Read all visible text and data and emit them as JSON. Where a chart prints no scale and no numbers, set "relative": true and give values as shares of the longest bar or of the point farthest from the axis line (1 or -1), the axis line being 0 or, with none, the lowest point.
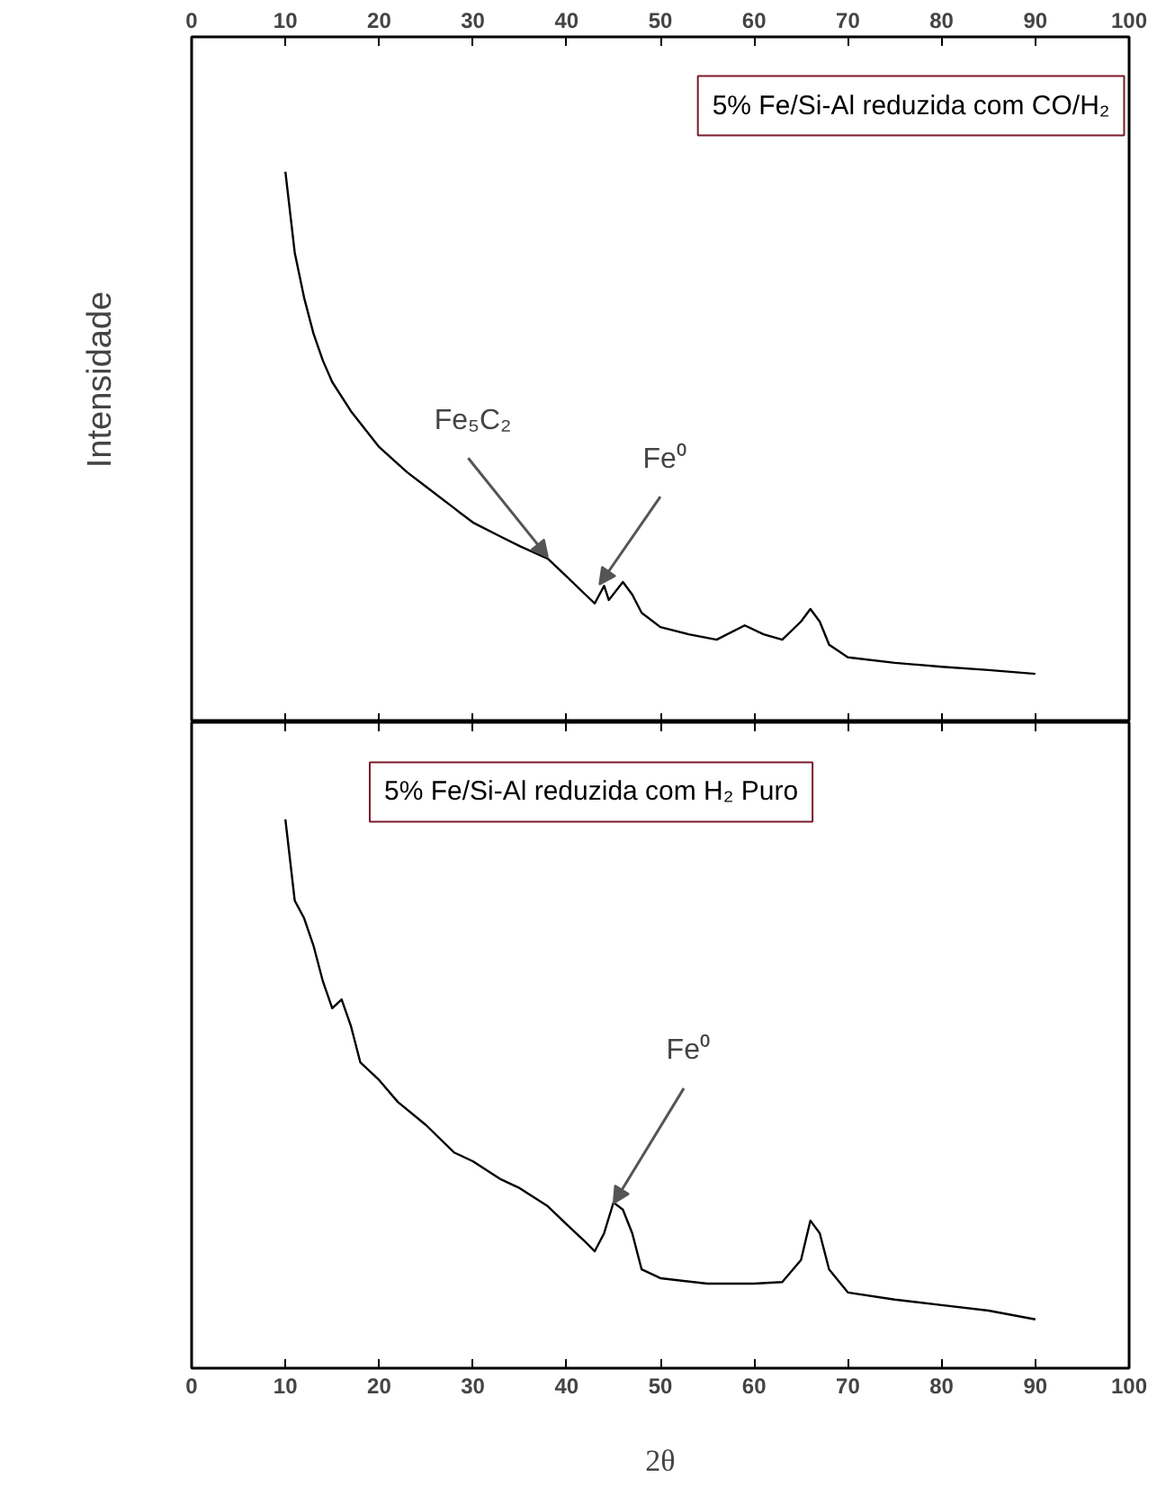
{
  "chart_data": [
    {
      "type": "line",
      "title": "5% Fe/Si-Al reduzida com CO/H₂",
      "ylabel": "Intensidade",
      "relative": true,
      "xlim": [
        0,
        100
      ],
      "xticks": [
        0,
        10,
        20,
        30,
        40,
        50,
        60,
        70,
        80,
        90,
        100
      ],
      "tick_labels": "x",
      "grid": false,
      "series": [
        {
          "color": "#000000",
          "x": [
            10,
            11,
            12,
            13,
            14,
            15,
            17,
            20,
            23,
            25,
            28,
            30,
            33,
            35,
            38,
            40,
            42,
            43,
            44,
            44.5,
            46,
            47,
            48,
            50,
            53,
            56,
            59,
            61,
            63,
            65,
            66,
            67,
            68,
            70,
            75,
            80,
            85,
            90
          ],
          "values": [
            1.0,
            0.853,
            0.771,
            0.706,
            0.657,
            0.618,
            0.565,
            0.5,
            0.454,
            0.428,
            0.389,
            0.363,
            0.337,
            0.32,
            0.297,
            0.265,
            0.232,
            0.216,
            0.248,
            0.222,
            0.255,
            0.232,
            0.199,
            0.173,
            0.16,
            0.15,
            0.176,
            0.16,
            0.15,
            0.183,
            0.206,
            0.183,
            0.141,
            0.118,
            0.108,
            0.101,
            0.095,
            0.088
          ]
        }
      ],
      "annotations": [
        {
          "text": "Fe₅C₂",
          "x": 38,
          "y": 0.3
        },
        {
          "text": "Fe⁰",
          "x": 43.5,
          "y": 0.25
        }
      ]
    },
    {
      "type": "line",
      "title": "5% Fe/Si-Al reduzida com H₂ Puro",
      "xlabel": "2θ",
      "relative": true,
      "xlim": [
        0,
        100
      ],
      "xticks": [
        0,
        10,
        20,
        30,
        40,
        50,
        60,
        70,
        80,
        90,
        100
      ],
      "tick_labels": "x",
      "grid": false,
      "series": [
        {
          "color": "#000000",
          "x": [
            10,
            11,
            12,
            13,
            14,
            15,
            16,
            17,
            18,
            20,
            22,
            25,
            28,
            30,
            33,
            35,
            38,
            40,
            42,
            43,
            44,
            45,
            46,
            47,
            48,
            50,
            55,
            60,
            63,
            65,
            66,
            67,
            68,
            70,
            75,
            80,
            85,
            90
          ],
          "values": [
            1.0,
            0.852,
            0.82,
            0.77,
            0.705,
            0.656,
            0.672,
            0.623,
            0.557,
            0.525,
            0.485,
            0.443,
            0.393,
            0.377,
            0.344,
            0.328,
            0.295,
            0.262,
            0.23,
            0.213,
            0.246,
            0.302,
            0.289,
            0.246,
            0.18,
            0.164,
            0.154,
            0.154,
            0.157,
            0.197,
            0.269,
            0.246,
            0.18,
            0.138,
            0.125,
            0.115,
            0.105,
            0.089
          ]
        }
      ],
      "annotations": [
        {
          "text": "Fe⁰",
          "x": 45,
          "y": 0.3
        }
      ]
    }
  ]
}
